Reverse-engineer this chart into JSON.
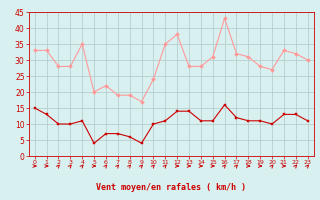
{
  "hours": [
    0,
    1,
    2,
    3,
    4,
    5,
    6,
    7,
    8,
    9,
    10,
    11,
    12,
    13,
    14,
    15,
    16,
    17,
    18,
    19,
    20,
    21,
    22,
    23
  ],
  "wind_avg": [
    15,
    13,
    10,
    10,
    11,
    4,
    7,
    7,
    6,
    4,
    10,
    11,
    14,
    14,
    11,
    11,
    16,
    12,
    11,
    11,
    10,
    13,
    13,
    11
  ],
  "wind_gust": [
    33,
    33,
    28,
    28,
    35,
    20,
    22,
    19,
    19,
    17,
    24,
    35,
    38,
    28,
    28,
    31,
    43,
    32,
    31,
    28,
    27,
    33,
    32,
    30
  ],
  "bg_color": "#d9f0f0",
  "grid_color": "#b0c8c8",
  "line_avg_color": "#cc0000",
  "line_gust_color": "#ff9999",
  "xlabel": "Vent moyen/en rafales ( km/h )",
  "xlabel_color": "#cc0000",
  "tick_color": "#cc0000",
  "ylim": [
    0,
    45
  ],
  "yticks": [
    0,
    5,
    10,
    15,
    20,
    25,
    30,
    35,
    40,
    45
  ],
  "figsize": [
    3.2,
    2.0
  ],
  "dpi": 100
}
